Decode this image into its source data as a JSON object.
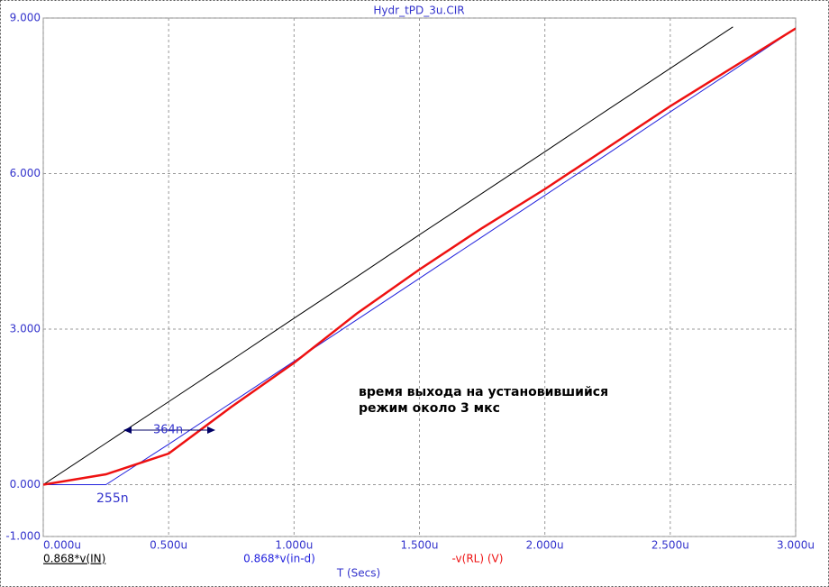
{
  "chart_data": {
    "type": "line",
    "title": "Hydr_tPD_3u.CIR",
    "x_label": "T (Secs)",
    "x": [
      0,
      0.25,
      0.5,
      0.75,
      1.0,
      1.25,
      1.5,
      1.75,
      2.0,
      2.25,
      2.5,
      2.75,
      3.0
    ],
    "series": [
      {
        "name": "0.868*v(IN)",
        "color": "#000000",
        "values": [
          0,
          0.8,
          1.6,
          2.4,
          3.21,
          4.01,
          4.82,
          5.62,
          6.42,
          7.23,
          8.03,
          8.83,
          null
        ]
      },
      {
        "name": "0.868*v(in-d)",
        "color": "#2222dd",
        "values": [
          0,
          0,
          0.78,
          1.58,
          2.38,
          3.18,
          3.98,
          4.78,
          5.58,
          6.38,
          7.19,
          7.99,
          8.8
        ]
      },
      {
        "name": "-v(RL) (V)",
        "color": "#ee1111",
        "values": [
          0,
          0.2,
          0.6,
          1.5,
          2.35,
          3.3,
          4.15,
          4.95,
          5.7,
          6.5,
          7.3,
          8.05,
          8.8
        ]
      }
    ],
    "xlim": [
      0,
      3
    ],
    "xticks": [
      {
        "value": 0,
        "label": "0.000u"
      },
      {
        "value": 0.5,
        "label": "0.500u"
      },
      {
        "value": 1.0,
        "label": "1.000u"
      },
      {
        "value": 1.5,
        "label": "1.500u"
      },
      {
        "value": 2.0,
        "label": "2.000u"
      },
      {
        "value": 2.5,
        "label": "2.500u"
      },
      {
        "value": 3.0,
        "label": "3.000u"
      }
    ],
    "ylim": [
      -1,
      9
    ],
    "yticks": [
      {
        "value": -1,
        "label": "-1.000"
      },
      {
        "value": 0,
        "label": "0.000"
      },
      {
        "value": 3,
        "label": "3.000"
      },
      {
        "value": 6,
        "label": "6.000"
      },
      {
        "value": 9,
        "label": "9.000"
      }
    ],
    "grid": true,
    "annotations": [
      "255n",
      "364n",
      "время выхода на установившийся",
      "режим около 3 мкс"
    ]
  }
}
